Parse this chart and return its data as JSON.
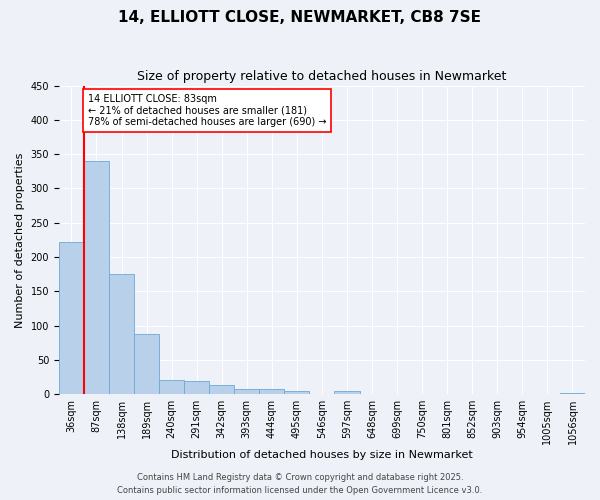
{
  "title1": "14, ELLIOTT CLOSE, NEWMARKET, CB8 7SE",
  "title2": "Size of property relative to detached houses in Newmarket",
  "xlabel": "Distribution of detached houses by size in Newmarket",
  "ylabel": "Number of detached properties",
  "categories": [
    "36sqm",
    "87sqm",
    "138sqm",
    "189sqm",
    "240sqm",
    "291sqm",
    "342sqm",
    "393sqm",
    "444sqm",
    "495sqm",
    "546sqm",
    "597sqm",
    "648sqm",
    "699sqm",
    "750sqm",
    "801sqm",
    "852sqm",
    "903sqm",
    "954sqm",
    "1005sqm",
    "1056sqm"
  ],
  "values": [
    222,
    340,
    175,
    88,
    20,
    19,
    13,
    7,
    8,
    5,
    0,
    5,
    0,
    0,
    0,
    0,
    0,
    0,
    0,
    0,
    2
  ],
  "bar_color": "#b8d0ea",
  "bar_edge_color": "#6aaad4",
  "vline_color": "red",
  "vline_x_index": 1,
  "annotation_text": "14 ELLIOTT CLOSE: 83sqm\n← 21% of detached houses are smaller (181)\n78% of semi-detached houses are larger (690) →",
  "annotation_box_color": "white",
  "annotation_box_edge": "red",
  "ylim": [
    0,
    450
  ],
  "yticks": [
    0,
    50,
    100,
    150,
    200,
    250,
    300,
    350,
    400,
    450
  ],
  "footer1": "Contains HM Land Registry data © Crown copyright and database right 2025.",
  "footer2": "Contains public sector information licensed under the Open Government Licence v3.0.",
  "bg_color": "#eef2f8",
  "plot_bg_color": "#eef2f8",
  "title1_fontsize": 11,
  "title2_fontsize": 9,
  "ylabel_fontsize": 8,
  "xlabel_fontsize": 8,
  "tick_fontsize": 7,
  "annotation_fontsize": 7,
  "footer_fontsize": 6
}
